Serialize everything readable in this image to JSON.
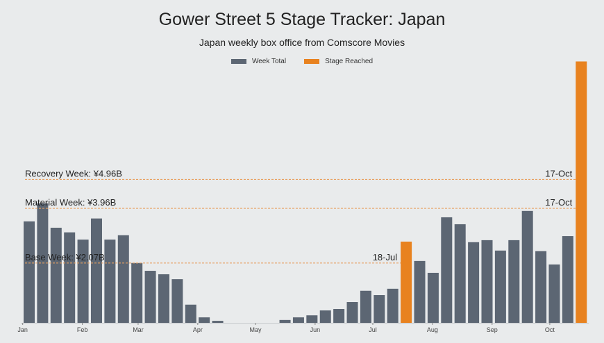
{
  "chart_data": {
    "type": "bar",
    "title": "Gower Street 5 Stage Tracker: Japan",
    "subtitle": "Japan weekly box office from Comscore Movies",
    "xlabel": "",
    "ylabel": "",
    "ylim": [
      0,
      9.1
    ],
    "y_unit": "¥B",
    "grid": false,
    "legend_position": "top-center",
    "colors": {
      "week_total": "#5c6673",
      "stage_reached": "#e8821f",
      "threshold_line": "#e8a060",
      "background": "#e9ebec"
    },
    "legend": [
      {
        "label": "Week Total",
        "color": "#5c6673"
      },
      {
        "label": "Stage Reached",
        "color": "#e8821f"
      }
    ],
    "x_ticks": [
      "Jan",
      "Feb",
      "Mar",
      "Apr",
      "May",
      "Jun",
      "Jul",
      "Aug",
      "Sep",
      "Oct"
    ],
    "weeks": [
      "2020-01-04",
      "2020-01-11",
      "2020-01-18",
      "2020-01-25",
      "2020-02-01",
      "2020-02-08",
      "2020-02-15",
      "2020-02-22",
      "2020-02-29",
      "2020-03-07",
      "2020-03-14",
      "2020-03-21",
      "2020-03-28",
      "2020-04-04",
      "2020-04-11",
      "2020-04-18",
      "2020-04-25",
      "2020-05-02",
      "2020-05-09",
      "2020-05-16",
      "2020-05-23",
      "2020-05-30",
      "2020-06-06",
      "2020-06-13",
      "2020-06-20",
      "2020-06-27",
      "2020-07-04",
      "2020-07-11",
      "2020-07-18",
      "2020-07-25",
      "2020-08-01",
      "2020-08-08",
      "2020-08-15",
      "2020-08-22",
      "2020-08-29",
      "2020-09-05",
      "2020-09-12",
      "2020-09-19",
      "2020-09-26",
      "2020-10-03",
      "2020-10-10",
      "2020-10-17"
    ],
    "values": [
      3.51,
      4.13,
      3.29,
      3.13,
      2.88,
      3.61,
      2.88,
      3.03,
      2.07,
      1.8,
      1.68,
      1.51,
      0.63,
      0.19,
      0.07,
      0,
      0,
      0,
      0,
      0.1,
      0.19,
      0.26,
      0.43,
      0.48,
      0.72,
      1.11,
      0.96,
      1.18,
      2.81,
      2.14,
      1.73,
      3.65,
      3.41,
      2.79,
      2.86,
      2.5,
      2.86,
      3.87,
      2.48,
      2.02,
      3.0,
      9.04
    ],
    "stage_reached_weeks": [
      "2020-07-18",
      "2020-10-17"
    ],
    "thresholds": [
      {
        "label": "Recovery Week:  ¥4.96B",
        "value": 4.96,
        "reached_label": "17-Oct"
      },
      {
        "label": "Material Week:  ¥3.96B",
        "value": 3.96,
        "reached_label": "17-Oct"
      },
      {
        "label": "Base Week:  ¥2.07B",
        "value": 2.07,
        "reached_label": "18-Jul"
      }
    ]
  }
}
